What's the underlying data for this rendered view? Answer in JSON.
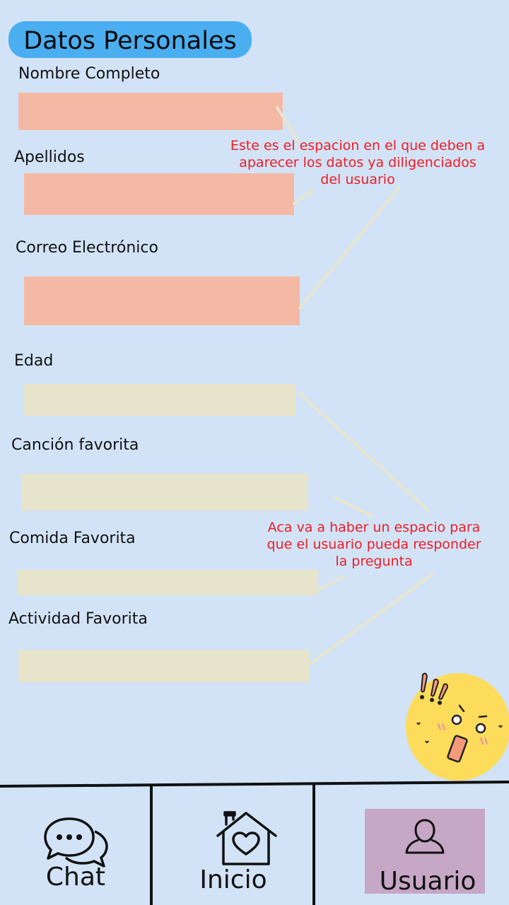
{
  "header": {
    "title": "Datos Personales"
  },
  "form": {
    "fields": [
      {
        "label": "Nombre Completo"
      },
      {
        "label": "Apellidos"
      },
      {
        "label": "Correo Electrónico"
      },
      {
        "label": "Edad"
      },
      {
        "label": "Canción favorita"
      },
      {
        "label": "Comida Favorita"
      },
      {
        "label": "Actividad Favorita"
      }
    ]
  },
  "annotations": {
    "filled_note": "Este es el espacion en el que deben a aparecer los datos ya diligenciados del usuario",
    "filled_note_lines": [
      "Este es el espacion en el que deben a",
      "aparecer los datos ya diligenciados",
      "del usuario"
    ],
    "empty_note": "Aca va a haber un espacio para que el usuario pueda responder la pregunta",
    "empty_note_lines": [
      "Aca va a haber un espacio para",
      "que el usuario pueda responder",
      "la pregunta"
    ]
  },
  "colors": {
    "background": "#d2e3f7",
    "title_pill": "#4aaef0",
    "filled_field": "#f4b9a5",
    "empty_field": "#e6e4cb",
    "note_text": "#ee1c24",
    "active_nav": "#c6a7c6",
    "emoji": "#fddc5c"
  },
  "nav": {
    "items": [
      {
        "label": "Chat",
        "icon": "chat-bubbles-icon",
        "active": false
      },
      {
        "label": "Inicio",
        "icon": "home-heart-icon",
        "active": false
      },
      {
        "label": "Usuario",
        "icon": "user-icon",
        "active": true
      }
    ]
  },
  "decor": {
    "icon": "surprised-emoji-icon"
  }
}
